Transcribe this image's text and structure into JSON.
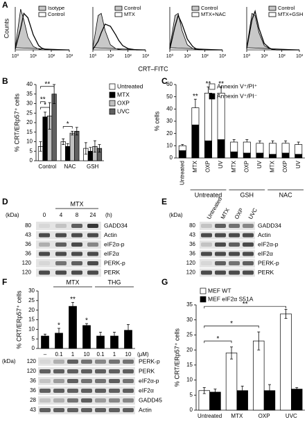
{
  "panel_labels": [
    "A",
    "B",
    "C",
    "D",
    "E",
    "F",
    "G"
  ],
  "chart_data": [
    {
      "type": "line",
      "ylabel": "Counts",
      "xlabel": "CRT–FITC",
      "xscale": "log",
      "x": [
        1,
        2,
        3,
        5,
        10,
        20,
        30,
        50,
        100,
        200,
        300,
        500,
        1000
      ],
      "xlim": [
        1,
        1000
      ],
      "xticks": [
        {
          "value": 1,
          "label": "10⁰"
        },
        {
          "value": 10,
          "label": "10¹"
        },
        {
          "value": 100,
          "label": "10²"
        },
        {
          "value": 1000,
          "label": "10³"
        }
      ],
      "ylim": [
        0,
        100
      ],
      "series": [
        {
          "name": "Isotype",
          "color": "#000000",
          "fill": "#c8c8c8",
          "values": [
            5,
            95,
            70,
            30,
            8,
            2,
            0,
            0,
            0,
            0,
            0,
            0,
            0
          ]
        },
        {
          "name": "Control",
          "color": "#000000",
          "values": [
            2,
            50,
            85,
            75,
            35,
            10,
            4,
            1,
            0,
            0,
            0,
            0,
            0
          ]
        }
      ]
    },
    {
      "type": "line",
      "xscale": "log",
      "x": [
        1,
        2,
        3,
        5,
        10,
        20,
        30,
        50,
        100,
        200,
        300,
        500,
        1000
      ],
      "xlim": [
        1,
        1000
      ],
      "xticks": [
        {
          "value": 1,
          "label": "10⁰"
        },
        {
          "value": 10,
          "label": "10¹"
        },
        {
          "value": 100,
          "label": "10²"
        },
        {
          "value": 1000,
          "label": "10³"
        }
      ],
      "ylim": [
        0,
        100
      ],
      "series": [
        {
          "name": "Control",
          "color": "#000000",
          "fill": "#c8c8c8",
          "values": [
            5,
            80,
            85,
            45,
            12,
            3,
            1,
            0,
            0,
            0,
            0,
            0,
            0
          ]
        },
        {
          "name": "MTX",
          "color": "#000000",
          "values": [
            1,
            20,
            40,
            60,
            55,
            35,
            22,
            10,
            3,
            1,
            0,
            0,
            0
          ]
        }
      ]
    },
    {
      "type": "line",
      "xscale": "log",
      "x": [
        1,
        2,
        3,
        5,
        10,
        20,
        30,
        50,
        100,
        200,
        300,
        500,
        1000
      ],
      "xlim": [
        1,
        1000
      ],
      "xticks": [
        {
          "value": 1,
          "label": "10⁰"
        },
        {
          "value": 10,
          "label": "10¹"
        },
        {
          "value": 100,
          "label": "10²"
        },
        {
          "value": 1000,
          "label": "10³"
        }
      ],
      "ylim": [
        0,
        100
      ],
      "series": [
        {
          "name": "Control",
          "color": "#000000",
          "fill": "#c8c8c8",
          "values": [
            5,
            80,
            85,
            45,
            12,
            3,
            1,
            0,
            0,
            0,
            0,
            0,
            0
          ]
        },
        {
          "name": "MTX+NAC",
          "color": "#000000",
          "values": [
            2,
            55,
            80,
            60,
            25,
            8,
            3,
            1,
            0,
            0,
            0,
            0,
            0
          ]
        }
      ]
    },
    {
      "type": "line",
      "xscale": "log",
      "x": [
        1,
        2,
        3,
        5,
        10,
        20,
        30,
        50,
        100,
        200,
        300,
        500,
        1000
      ],
      "xlim": [
        1,
        1000
      ],
      "xticks": [
        {
          "value": 1,
          "label": "10⁰"
        },
        {
          "value": 10,
          "label": "10¹"
        },
        {
          "value": 100,
          "label": "10²"
        },
        {
          "value": 1000,
          "label": "10³"
        }
      ],
      "ylim": [
        0,
        100
      ],
      "series": [
        {
          "name": "Control",
          "color": "#000000",
          "fill": "#c8c8c8",
          "values": [
            5,
            85,
            80,
            40,
            10,
            3,
            1,
            0,
            0,
            0,
            0,
            0,
            0
          ]
        },
        {
          "name": "MTX+GSH",
          "color": "#000000",
          "values": [
            3,
            70,
            90,
            50,
            15,
            4,
            1,
            0,
            0,
            0,
            0,
            0,
            0
          ]
        }
      ]
    },
    {
      "type": "bar",
      "ylabel": "% CRT/ERp57⁺ cells",
      "categories": [
        "Control",
        "NAC",
        "GSH"
      ],
      "ylim": [
        0,
        40
      ],
      "yticks": [
        0,
        5,
        10,
        15,
        20,
        25,
        30,
        35,
        40
      ],
      "legend": "right",
      "series": [
        {
          "name": "Untreated",
          "color": "#ffffff",
          "values": [
            7.5,
            10,
            6.5
          ],
          "errors": [
            2.5,
            1.5,
            3
          ]
        },
        {
          "name": "MTX",
          "color": "#000000",
          "values": [
            23,
            7.5,
            5
          ],
          "errors": [
            2.5,
            1.5,
            2
          ]
        },
        {
          "name": "OXP",
          "color": "#c0c0c0",
          "values": [
            23.5,
            14.5,
            7.5
          ],
          "errors": [
            7,
            1,
            3
          ]
        },
        {
          "name": "UVC",
          "color": "#606060",
          "values": [
            35,
            15.5,
            6.5
          ],
          "errors": [
            5,
            2,
            2
          ]
        }
      ],
      "annotations": [
        "**",
        "**",
        "*",
        "*"
      ]
    },
    {
      "type": "stacked_bar",
      "ylabel": "% cells",
      "categories": [
        "Untreated",
        "MTX",
        "OXP",
        "UV",
        "MTX",
        "OXP",
        "UV",
        "MTX",
        "OXP",
        "UV"
      ],
      "groups": [
        "Untreated",
        "GSH",
        "NAC"
      ],
      "ylim": [
        0,
        60
      ],
      "yticks": [
        0,
        10,
        20,
        30,
        40,
        50,
        60
      ],
      "legend": "top-right",
      "series": [
        {
          "name": "Annexin V⁺/PI⁻",
          "color": "#000000",
          "values": [
            6,
            27,
            14,
            15,
            5,
            4,
            4,
            3,
            4,
            3
          ]
        },
        {
          "name": "Annexin V⁺/PI⁺",
          "color": "#ffffff",
          "values": [
            4,
            14,
            39,
            38,
            8,
            9,
            8,
            9,
            8,
            8
          ],
          "errors": [
            1,
            7,
            5,
            5,
            2,
            2,
            2,
            2,
            2,
            2
          ]
        }
      ],
      "annotations": [
        "**",
        "**",
        "**"
      ]
    },
    {
      "type": "bar",
      "ylabel": "% CRT/ERp57⁺ cells",
      "categories": [
        "–",
        "0.1",
        "1",
        "10",
        "0.1",
        "1",
        "10"
      ],
      "groups": [
        "MTX",
        "THG"
      ],
      "unit": "(μM)",
      "ylim": [
        0,
        30
      ],
      "yticks": [
        0,
        5,
        10,
        15,
        20,
        25,
        30
      ],
      "series": [
        {
          "color": "#000000",
          "values": [
            6.5,
            8,
            22,
            12,
            6.5,
            6.5,
            9.5
          ],
          "errors": [
            1,
            2.5,
            2,
            1,
            2,
            2,
            3
          ]
        }
      ],
      "annotations": [
        "*",
        "**",
        "*"
      ]
    },
    {
      "type": "bar",
      "ylabel": "% CRT/ERp57⁺ cells",
      "categories": [
        "Untreated",
        "MTX",
        "OXP",
        "UVC"
      ],
      "ylim": [
        0,
        35
      ],
      "yticks": [
        0,
        5,
        10,
        15,
        20,
        25,
        30,
        35
      ],
      "legend": "top-left",
      "series": [
        {
          "name": "MEF WT",
          "color": "#ffffff",
          "values": [
            6.5,
            19,
            23,
            32
          ],
          "errors": [
            1,
            2,
            3,
            1.5
          ]
        },
        {
          "name": "MEF eIF2α S51A",
          "color": "#000000",
          "values": [
            6,
            6.5,
            6.5,
            7
          ],
          "errors": [
            1,
            1.5,
            2,
            0.5
          ]
        }
      ],
      "annotations": [
        "*",
        "*",
        "**"
      ]
    }
  ],
  "blots": [
    {
      "kda_label": "(kDa)",
      "group": "MTX",
      "lanes": [
        "0",
        "4",
        "8",
        "24"
      ],
      "lane_unit": "(h)",
      "rows": [
        {
          "kda": 80,
          "label": "GADD34"
        },
        {
          "kda": 43,
          "label": "Actin"
        },
        {
          "kda": 36,
          "label": "eIF2α-p"
        },
        {
          "kda": 36,
          "label": "eIF2α"
        },
        {
          "kda": 120,
          "label": "PERK-p"
        },
        {
          "kda": 120,
          "label": "PERK"
        }
      ]
    },
    {
      "kda_label": "(kDa)",
      "lanes": [
        "Untreated",
        "MTX",
        "OXP",
        "UVC"
      ],
      "rows": [
        {
          "kda": 80,
          "label": "GADD34"
        },
        {
          "kda": 43,
          "label": "Actin"
        },
        {
          "kda": 36,
          "label": "eIF2α-p"
        },
        {
          "kda": 36,
          "label": "eIF2α"
        },
        {
          "kda": 120,
          "label": "PERK-p"
        },
        {
          "kda": 120,
          "label": "PERK"
        }
      ]
    },
    {
      "kda_label": "(kDa)",
      "rows": [
        {
          "kda": 120,
          "label": "PERK-p"
        },
        {
          "kda": 120,
          "label": "PERK"
        },
        {
          "kda": 36,
          "label": "eIF2α-p"
        },
        {
          "kda": 36,
          "label": "eIF2α"
        },
        {
          "kda": 28,
          "label": "GADD45"
        },
        {
          "kda": 43,
          "label": "Actin"
        }
      ]
    }
  ]
}
